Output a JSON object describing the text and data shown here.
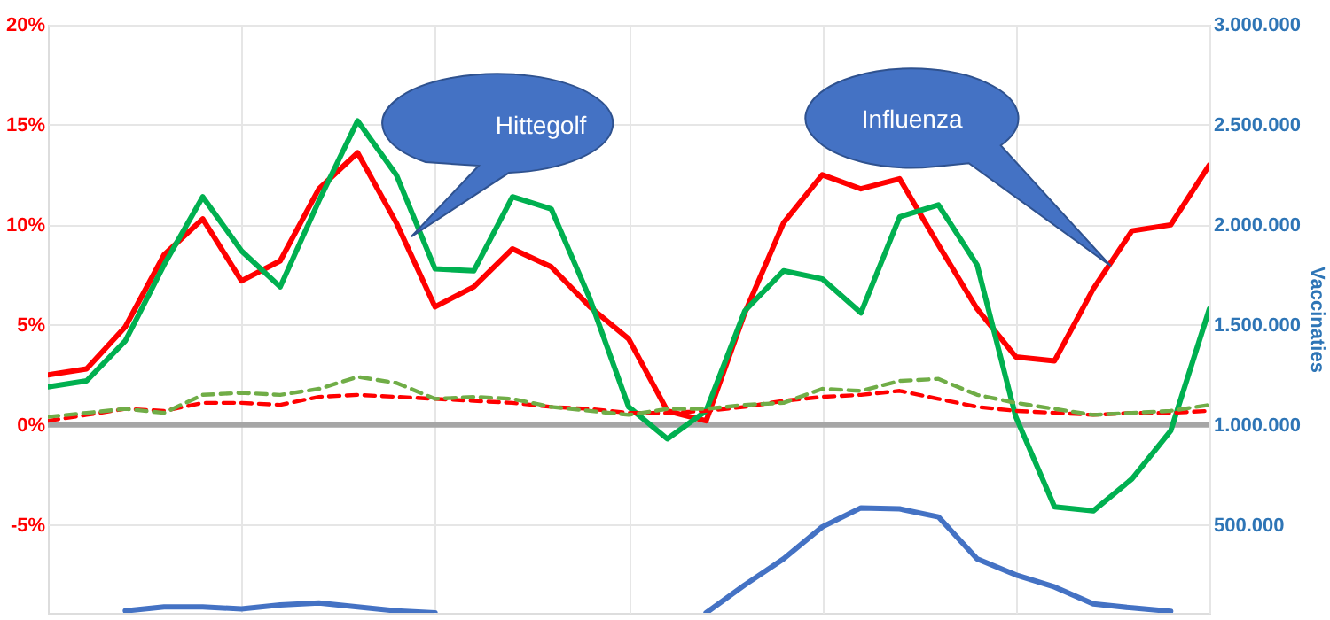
{
  "chart_data": {
    "type": "line",
    "y2label": "Vaccinaties",
    "categories": [
      null,
      null,
      null,
      null,
      null,
      null,
      null,
      null,
      null,
      null,
      null,
      null,
      null,
      null,
      null,
      null,
      null,
      null,
      null,
      null,
      null,
      null,
      null,
      null,
      null,
      null,
      null,
      null,
      null,
      null,
      null
    ],
    "ylim": [
      -9.4,
      20
    ],
    "yticks": [
      {
        "value": 20,
        "label": "20%"
      },
      {
        "value": 15,
        "label": "15%"
      },
      {
        "value": 10,
        "label": "10%"
      },
      {
        "value": 5,
        "label": "5%"
      },
      {
        "value": 0,
        "label": "0%"
      },
      {
        "value": -5,
        "label": "-5%"
      }
    ],
    "y2lim": [
      60000,
      3000000
    ],
    "y2ticks": [
      {
        "value": 3000000,
        "label": "3.000.000"
      },
      {
        "value": 2500000,
        "label": "2.500.000"
      },
      {
        "value": 2000000,
        "label": "2.000.000"
      },
      {
        "value": 1500000,
        "label": "1.500.000"
      },
      {
        "value": 1000000,
        "label": "1.000.000"
      },
      {
        "value": 500000,
        "label": "500.000"
      }
    ],
    "grid": true,
    "marker": "none",
    "ref_lines": [
      {
        "axis": "y",
        "value": 0,
        "color": "#a6a6a6"
      }
    ],
    "annotations": [
      "Hittegolf",
      "Influenza"
    ],
    "series": [
      {
        "color": "#ff0000",
        "line_style": "solid",
        "values": [
          2.5,
          2.8,
          4.9,
          8.5,
          10.3,
          7.2,
          8.2,
          11.8,
          13.6,
          10.1,
          5.9,
          6.9,
          8.8,
          7.9,
          5.9,
          4.3,
          0.7,
          0.2,
          5.6,
          10.1,
          12.5,
          11.8,
          12.3,
          9.0,
          5.8,
          3.4,
          3.2,
          6.8,
          9.7,
          10.0,
          13.0
        ]
      },
      {
        "color": "#00b050",
        "line_style": "solid",
        "values": [
          1.9,
          2.2,
          4.2,
          8.0,
          11.4,
          8.7,
          6.9,
          11.2,
          15.2,
          12.5,
          7.8,
          7.7,
          11.4,
          10.8,
          6.3,
          0.9,
          -0.7,
          0.7,
          5.7,
          7.7,
          7.3,
          5.6,
          10.4,
          11.0,
          8.0,
          0.4,
          -4.1,
          -4.3,
          -2.7,
          -0.3,
          5.8
        ]
      },
      {
        "color": "#ff0000",
        "line_style": "dashed",
        "values": [
          0.2,
          0.5,
          0.8,
          0.7,
          1.1,
          1.1,
          1.0,
          1.4,
          1.5,
          1.4,
          1.3,
          1.2,
          1.1,
          0.9,
          0.8,
          0.6,
          0.6,
          0.7,
          0.9,
          1.2,
          1.4,
          1.5,
          1.7,
          1.3,
          0.9,
          0.7,
          0.6,
          0.5,
          0.6,
          0.6,
          0.7
        ]
      },
      {
        "color": "#70ad47",
        "line_style": "dashed",
        "values": [
          0.4,
          0.6,
          0.8,
          0.6,
          1.5,
          1.6,
          1.5,
          1.8,
          2.4,
          2.1,
          1.3,
          1.4,
          1.3,
          0.9,
          0.7,
          0.5,
          0.8,
          0.8,
          1.0,
          1.1,
          1.8,
          1.7,
          2.2,
          2.3,
          1.5,
          1.1,
          0.8,
          0.5,
          0.6,
          0.7,
          1.0
        ]
      },
      {
        "color": "#4472c4",
        "line_style": "solid",
        "axis": "y2",
        "values": [
          null,
          null,
          70000,
          90000,
          90000,
          80000,
          100000,
          110000,
          90000,
          70000,
          60000,
          null,
          null,
          null,
          null,
          null,
          null,
          60000,
          200000,
          330000,
          490000,
          585000,
          580000,
          540000,
          330000,
          250000,
          190000,
          105000,
          85000,
          68000,
          null
        ]
      }
    ]
  }
}
